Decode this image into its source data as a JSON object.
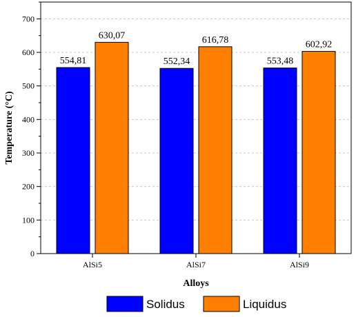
{
  "chart_data": {
    "type": "bar",
    "categories": [
      "AlSi5",
      "AlSi7",
      "AlSi9"
    ],
    "series": [
      {
        "name": "Solidus",
        "values": [
          554.81,
          552.34,
          553.48
        ],
        "labels": [
          "554,81",
          "552,34",
          "553,48"
        ],
        "color": "#0000FF"
      },
      {
        "name": "Liquidus",
        "values": [
          630.07,
          616.78,
          602.92
        ],
        "labels": [
          "630,07",
          "616,78",
          "602,92"
        ],
        "color": "#FF8000"
      }
    ],
    "xlabel": "Alloys",
    "ylabel": "Temperature (°C)",
    "ylim": [
      0,
      750
    ],
    "yticks": [
      0,
      100,
      200,
      300,
      400,
      500,
      600,
      700
    ],
    "grid": true,
    "legend_position": "bottom"
  }
}
